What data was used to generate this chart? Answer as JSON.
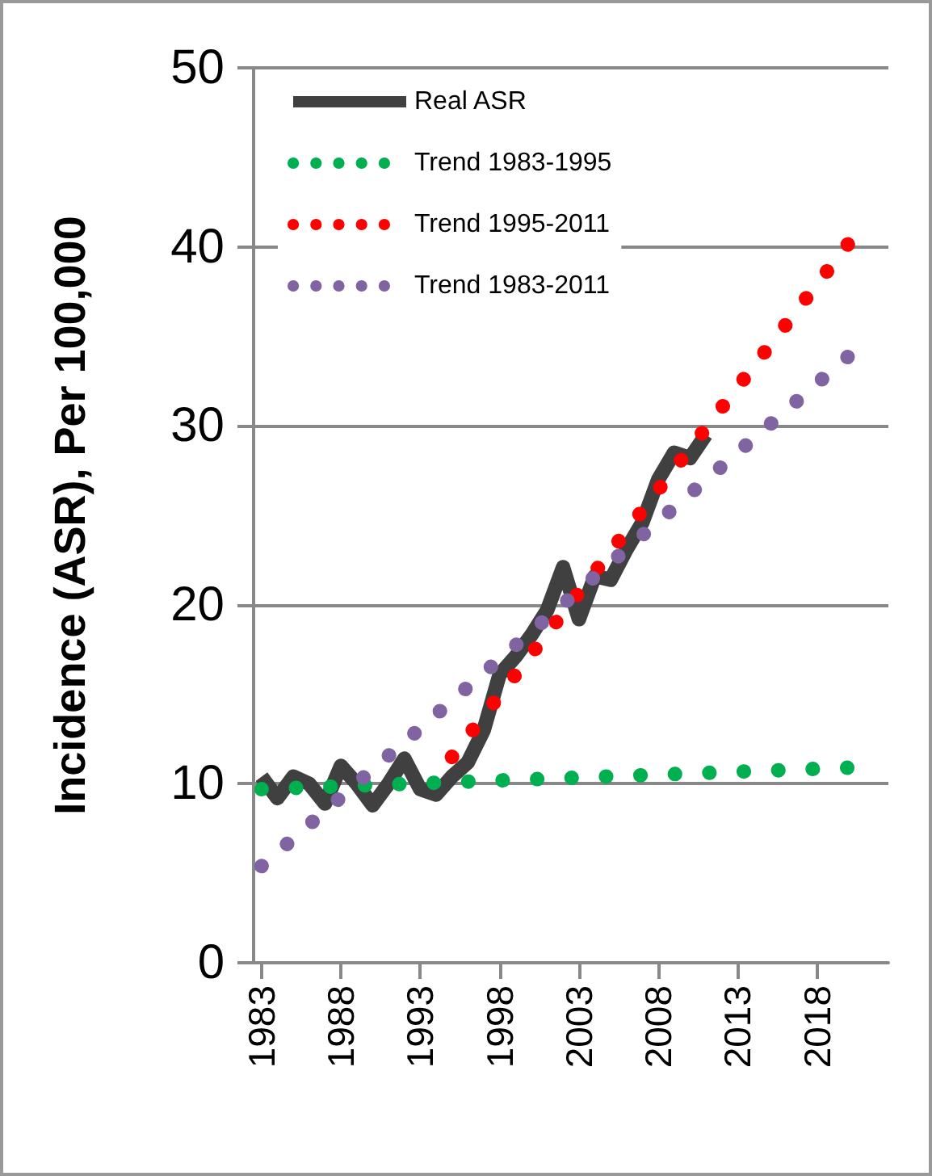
{
  "chart_data": {
    "type": "line",
    "ylabel": "Incidence (ASR), Per 100,000",
    "xlim": [
      1982.5,
      2022.5
    ],
    "xticks": [
      1983,
      1988,
      1993,
      1998,
      2003,
      2008,
      2013,
      2018
    ],
    "ylim": [
      0,
      50
    ],
    "yticks": [
      0,
      10,
      20,
      30,
      40,
      50
    ],
    "grid": "y",
    "legend": "top left",
    "marker": "none",
    "series": [
      {
        "name": "Real ASR",
        "color": "#404040",
        "line_style": "solid",
        "x": [
          1983,
          1984,
          1985,
          1986,
          1987,
          1988,
          1989,
          1990,
          1991,
          1992,
          1993,
          1994,
          1995,
          1996,
          1997,
          1998,
          1999,
          2000,
          2001,
          2002,
          2003,
          2004,
          2005,
          2006,
          2007,
          2008,
          2009,
          2010,
          2011
        ],
        "values": [
          10.4,
          9.2,
          10.4,
          10.0,
          8.9,
          11.0,
          10.0,
          8.8,
          10.0,
          11.4,
          9.7,
          9.4,
          10.4,
          11.2,
          13.0,
          16.1,
          17.1,
          18.3,
          19.7,
          22.1,
          19.2,
          21.6,
          21.4,
          23.1,
          24.6,
          27.0,
          28.5,
          28.2,
          29.5
        ]
      },
      {
        "name": "Trend 1983-1995",
        "color": "#00b050",
        "line_style": "dotted",
        "x": [
          1983,
          2020
        ],
        "values": [
          9.7,
          10.9
        ]
      },
      {
        "name": "Trend 1995-2011",
        "color": "#ff0000",
        "line_style": "dotted",
        "x": [
          1995,
          2020
        ],
        "values": [
          11.5,
          40.2
        ]
      },
      {
        "name": "Trend 1983-2011",
        "color": "#8064a2",
        "line_style": "dotted",
        "x": [
          1983,
          2020
        ],
        "values": [
          5.4,
          33.9
        ]
      }
    ]
  }
}
